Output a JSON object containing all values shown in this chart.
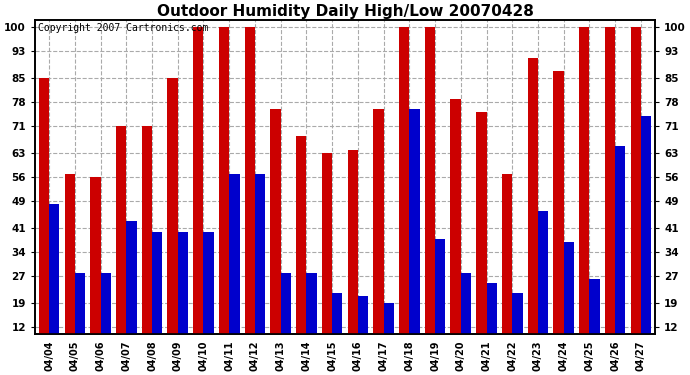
{
  "title": "Outdoor Humidity Daily High/Low 20070428",
  "copyright": "Copyright 2007 Cartronics.com",
  "dates": [
    "04/04",
    "04/05",
    "04/06",
    "04/07",
    "04/08",
    "04/09",
    "04/10",
    "04/11",
    "04/12",
    "04/13",
    "04/14",
    "04/15",
    "04/16",
    "04/17",
    "04/18",
    "04/19",
    "04/20",
    "04/21",
    "04/22",
    "04/23",
    "04/24",
    "04/25",
    "04/26",
    "04/27"
  ],
  "highs": [
    85,
    57,
    56,
    71,
    71,
    85,
    100,
    100,
    100,
    76,
    68,
    63,
    64,
    76,
    100,
    100,
    79,
    75,
    57,
    91,
    87,
    100,
    100,
    100
  ],
  "lows": [
    48,
    28,
    28,
    43,
    40,
    40,
    40,
    57,
    57,
    28,
    28,
    22,
    21,
    19,
    76,
    38,
    28,
    25,
    22,
    46,
    37,
    26,
    65,
    74
  ],
  "high_color": "#cc0000",
  "low_color": "#0000cc",
  "bg_color": "#ffffff",
  "plot_bg": "#ffffff",
  "grid_color": "#aaaaaa",
  "yticks": [
    12,
    19,
    27,
    34,
    41,
    49,
    56,
    63,
    71,
    78,
    85,
    93,
    100
  ],
  "ylim": [
    10,
    102
  ],
  "title_fontsize": 11,
  "copyright_fontsize": 7,
  "bar_width": 0.4
}
